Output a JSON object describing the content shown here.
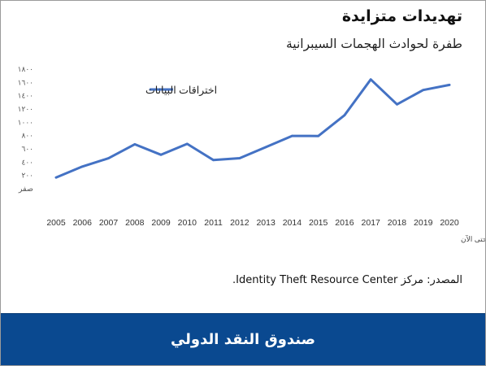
{
  "header": {
    "title": "تهديدات متزايدة",
    "subtitle": "طفرة لحوادث الهجمات السيبرانية"
  },
  "source_note": "المصدر: مركز Identity Theft Resource Center.",
  "footer": {
    "label": "صندوق النقد الدولي"
  },
  "chart_data": {
    "type": "line",
    "x": [
      2005,
      2006,
      2007,
      2008,
      2009,
      2010,
      2011,
      2012,
      2013,
      2014,
      2015,
      2016,
      2017,
      2018,
      2019,
      2020
    ],
    "x_tick_labels": [
      "2005",
      "2006",
      "2007",
      "2008",
      "2009",
      "2010",
      "2011",
      "2012",
      "2013",
      "2014",
      "2015",
      "2016",
      "2017",
      "2018",
      "2019",
      "2020"
    ],
    "series": [
      {
        "name": "اختراقات البيانات",
        "color": "#4472c4",
        "values": [
          157,
          321,
          446,
          656,
          498,
          662,
          419,
          447,
          614,
          783,
          781,
          1093,
          1632,
          1257,
          1473,
          1550
        ]
      }
    ],
    "ylim": [
      0,
      1800
    ],
    "y_ticks": [
      0,
      200,
      400,
      600,
      800,
      1000,
      1200,
      1400,
      1600,
      1800
    ],
    "y_tick_labels": [
      "صفر",
      "٢٠٠",
      "٤٠٠",
      "٦٠٠",
      "٨٠٠",
      "١٠٠٠",
      "١٢٠٠",
      "١٤٠٠",
      "١٦٠٠",
      "١٨٠٠"
    ],
    "xlabel": "السنة حتى الآن",
    "ylabel": "",
    "grid": false,
    "legend_position": "top-left"
  }
}
